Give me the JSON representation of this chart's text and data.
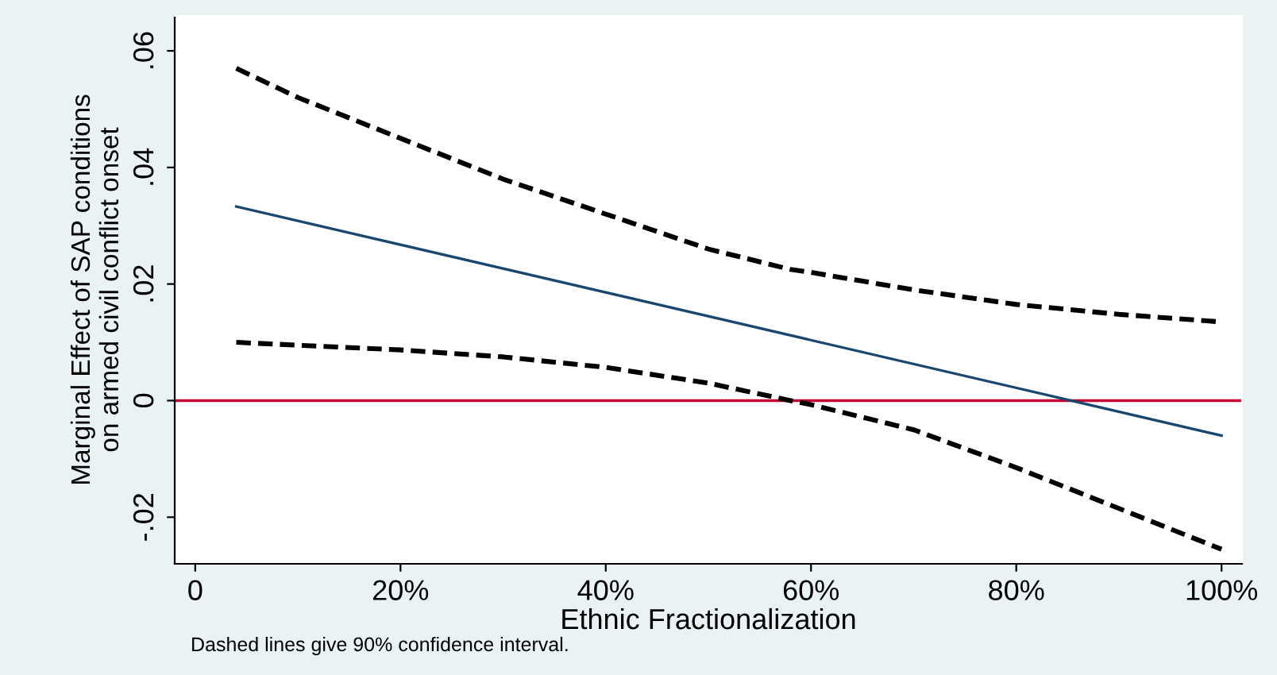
{
  "chart_data": {
    "type": "line",
    "xlabel": "Ethnic Fractionalization",
    "ylabel": "Marginal Effect of SAP conditions\non armed civil conflict onset",
    "x": [
      4,
      10,
      20,
      30,
      40,
      50,
      58,
      60,
      70,
      80,
      90,
      100
    ],
    "series": [
      {
        "color": "#1a476f",
        "line_style": "solid",
        "x": [
          4,
          100
        ],
        "values": [
          0.0333,
          -0.006
        ]
      },
      {
        "color": "#000000",
        "line_style": "dashed",
        "values": [
          0.057,
          0.052,
          0.045,
          0.038,
          0.032,
          0.026,
          0.0225,
          0.022,
          0.019,
          0.0165,
          0.0148,
          0.0135
        ]
      },
      {
        "color": "#000000",
        "line_style": "dashed",
        "values": [
          0.01,
          0.0095,
          0.0087,
          0.0075,
          0.0057,
          0.003,
          0.0,
          -0.0007,
          -0.005,
          -0.0115,
          -0.0185,
          -0.0255
        ]
      }
    ],
    "xlim": [
      -2,
      102
    ],
    "xticks": [
      0,
      {
        "value": 20,
        "label": "20%"
      },
      {
        "value": 40,
        "label": "40%"
      },
      {
        "value": 60,
        "label": "60%"
      },
      {
        "value": 80,
        "label": "80%"
      },
      {
        "value": 100,
        "label": "100%"
      }
    ],
    "ylim": [
      -0.028,
      0.066
    ],
    "yticks": [
      {
        "value": -0.02,
        "label": "-.02"
      },
      0,
      {
        "value": 0.02,
        "label": ".02"
      },
      {
        "value": 0.04,
        "label": ".04"
      },
      {
        "value": 0.06,
        "label": ".06"
      }
    ],
    "ref_lines": [
      {
        "axis": "y",
        "value": 0,
        "color": "#c10534"
      }
    ],
    "grid": false,
    "legend": false,
    "marker": "none",
    "annotations": [
      "Dashed lines give 90% confidence interval."
    ]
  }
}
